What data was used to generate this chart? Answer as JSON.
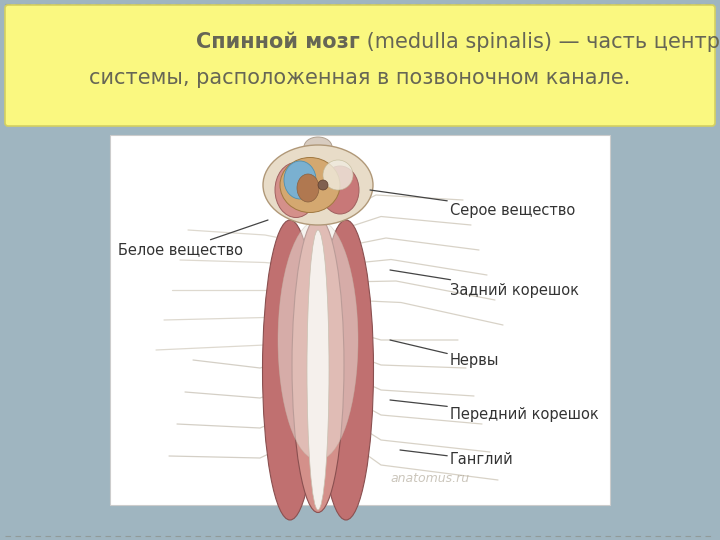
{
  "bg_color": "#9fb5c0",
  "slide_bg": "#ffffff",
  "title_box_color": "#faf880",
  "title_box_edge": "#d4d060",
  "text_color": "#666655",
  "label_color": "#333333",
  "bold_text": "Спинной мозг",
  "rest_line1": " (medulla spinalis) — часть центральной нервной",
  "line2": "системы, расположенная в позвоночном канале.",
  "watermark": "anatomus.ru",
  "label_left": "Белое вещество",
  "label_gray": "Серое вещество",
  "label_zadniy": "Задний корешок",
  "label_nervy": "Нервы",
  "label_peredniy": "Передний корешок",
  "label_gangliy": "Ганглий",
  "font_title": 15,
  "font_label": 10.5
}
